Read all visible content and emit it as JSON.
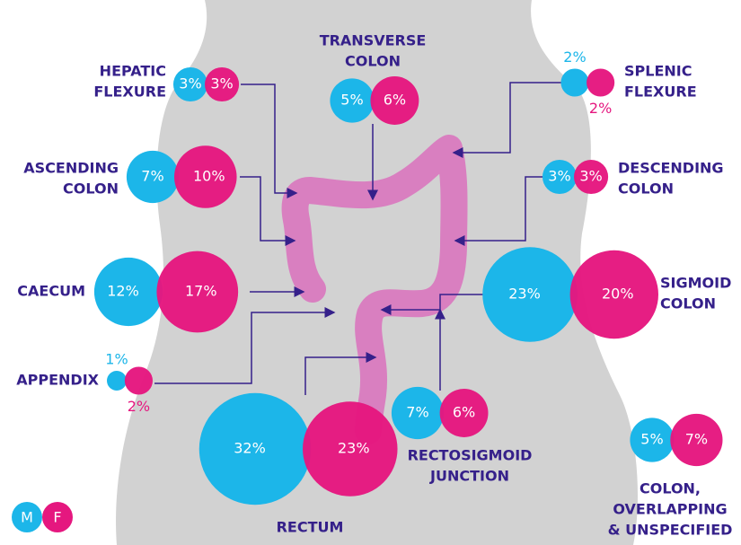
{
  "regions": [
    {
      "title": [
        "HEPATIC",
        "FLEXURE"
      ],
      "values": [
        3,
        3
      ],
      "value_labels": [
        "3%",
        "3%"
      ]
    },
    {
      "title": [
        "TRANSVERSE",
        "COLON"
      ],
      "values": [
        5,
        6
      ],
      "value_labels": [
        "5%",
        "6%"
      ]
    },
    {
      "title": [
        "SPLENIC",
        "FLEXURE"
      ],
      "values": [
        2,
        2
      ],
      "value_labels": [
        "2%",
        "2%"
      ]
    },
    {
      "title": [
        "ASCENDING",
        "COLON"
      ],
      "values": [
        7,
        10
      ],
      "value_labels": [
        "7%",
        "10%"
      ]
    },
    {
      "title": [
        "DESCENDING",
        "COLON"
      ],
      "values": [
        3,
        3
      ],
      "value_labels": [
        "3%",
        "3%"
      ]
    },
    {
      "title": [
        "CAECUM"
      ],
      "values": [
        12,
        17
      ],
      "value_labels": [
        "12%",
        "17%"
      ]
    },
    {
      "title": [
        "SIGMOID",
        "COLON"
      ],
      "values": [
        23,
        20
      ],
      "value_labels": [
        "23%",
        "20%"
      ]
    },
    {
      "title": [
        "APPENDIX"
      ],
      "values": [
        1,
        2
      ],
      "value_labels": [
        "1%",
        "2%"
      ]
    },
    {
      "title": [
        "RECTOSIGMOID",
        "JUNCTION"
      ],
      "values": [
        7,
        6
      ],
      "value_labels": [
        "7%",
        "6%"
      ]
    },
    {
      "title": [
        "RECTUM"
      ],
      "values": [
        32,
        23
      ],
      "value_labels": [
        "32%",
        "23%"
      ]
    },
    {
      "title": [
        "COLON,",
        "OVERLAPPING",
        "& UNSPECIFIED"
      ],
      "values": [
        5,
        7
      ],
      "value_labels": [
        "5%",
        "7%"
      ]
    }
  ],
  "legend": [
    "M",
    "F"
  ]
}
